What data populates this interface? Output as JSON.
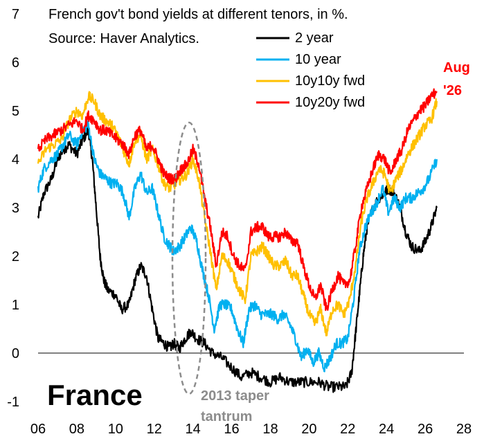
{
  "chart_data": {
    "type": "line",
    "title": "French gov't bond yields at different tenors, in %.",
    "subtitle": "Source: Haver Analytics.",
    "country_label": "France",
    "xlabel": "",
    "ylabel": "",
    "xlim": [
      2006,
      2028
    ],
    "ylim": [
      -1,
      7
    ],
    "x_ticks": [
      2006,
      2008,
      2010,
      2012,
      2014,
      2016,
      2018,
      2020,
      2022,
      2024,
      2026,
      2028
    ],
    "x_tick_labels": [
      "06",
      "08",
      "10",
      "12",
      "14",
      "16",
      "18",
      "20",
      "22",
      "24",
      "26",
      "28"
    ],
    "y_ticks": [
      -1,
      0,
      1,
      2,
      3,
      4,
      5,
      6,
      7
    ],
    "y_tick_labels": [
      "-1",
      "0",
      "1",
      "2",
      "3",
      "4",
      "5",
      "6",
      "7"
    ],
    "grid": false,
    "legend_position": "top-right",
    "series": [
      {
        "name": "2 year",
        "color": "#000000",
        "x": [
          2006.0,
          2006.3,
          2006.7,
          2007.0,
          2007.3,
          2007.6,
          2008.0,
          2008.3,
          2008.6,
          2008.8,
          2009.0,
          2009.2,
          2009.4,
          2009.6,
          2010.0,
          2010.3,
          2010.7,
          2011.0,
          2011.3,
          2011.6,
          2011.9,
          2012.2,
          2012.5,
          2012.8,
          2013.0,
          2013.3,
          2013.6,
          2013.9,
          2014.2,
          2014.6,
          2015.0,
          2015.5,
          2016.0,
          2016.5,
          2017.0,
          2017.5,
          2018.0,
          2018.5,
          2019.0,
          2019.5,
          2020.0,
          2020.5,
          2021.0,
          2021.5,
          2021.9,
          2022.2,
          2022.4,
          2022.6,
          2022.8,
          2023.0,
          2023.3,
          2023.6,
          2023.9,
          2024.1,
          2024.4,
          2024.7,
          2025.0,
          2025.3,
          2025.7,
          2026.0,
          2026.3,
          2026.6
        ],
        "values": [
          2.8,
          3.3,
          3.6,
          4.0,
          4.2,
          4.3,
          4.1,
          4.4,
          4.6,
          4.0,
          3.0,
          2.0,
          1.5,
          1.3,
          1.2,
          0.9,
          1.0,
          1.5,
          1.8,
          1.6,
          0.9,
          0.3,
          0.2,
          0.1,
          0.2,
          0.1,
          0.3,
          0.45,
          0.3,
          0.2,
          0.0,
          -0.1,
          -0.3,
          -0.5,
          -0.4,
          -0.5,
          -0.6,
          -0.5,
          -0.6,
          -0.6,
          -0.6,
          -0.6,
          -0.7,
          -0.7,
          -0.7,
          -0.4,
          0.4,
          1.2,
          2.0,
          2.6,
          3.0,
          3.2,
          3.3,
          3.4,
          3.3,
          3.0,
          2.5,
          2.2,
          2.1,
          2.3,
          2.6,
          3.0
        ]
      },
      {
        "name": "10 year",
        "color": "#00b0f0",
        "x": [
          2006.0,
          2006.3,
          2006.7,
          2007.0,
          2007.3,
          2007.6,
          2008.0,
          2008.3,
          2008.6,
          2008.9,
          2009.2,
          2009.5,
          2009.8,
          2010.1,
          2010.4,
          2010.7,
          2011.0,
          2011.3,
          2011.6,
          2011.9,
          2012.2,
          2012.5,
          2012.8,
          2013.0,
          2013.3,
          2013.6,
          2013.9,
          2014.2,
          2014.5,
          2014.8,
          2015.1,
          2015.4,
          2015.7,
          2016.0,
          2016.3,
          2016.6,
          2016.9,
          2017.2,
          2017.5,
          2017.8,
          2018.1,
          2018.4,
          2018.7,
          2019.0,
          2019.3,
          2019.6,
          2019.9,
          2020.2,
          2020.5,
          2020.8,
          2021.1,
          2021.4,
          2021.7,
          2022.0,
          2022.3,
          2022.6,
          2022.9,
          2023.2,
          2023.5,
          2023.8,
          2024.1,
          2024.4,
          2024.7,
          2025.0,
          2025.3,
          2025.6,
          2025.9,
          2026.2,
          2026.6
        ],
        "values": [
          3.4,
          3.8,
          4.0,
          4.1,
          4.3,
          4.5,
          4.3,
          4.6,
          4.7,
          4.0,
          3.7,
          3.6,
          3.5,
          3.5,
          3.3,
          2.8,
          3.4,
          3.7,
          3.3,
          3.4,
          2.9,
          2.4,
          2.2,
          2.1,
          2.2,
          2.4,
          2.6,
          2.3,
          1.7,
          1.2,
          0.5,
          1.0,
          1.0,
          0.9,
          0.5,
          0.2,
          0.9,
          1.0,
          0.8,
          0.8,
          0.8,
          0.7,
          0.8,
          0.6,
          0.3,
          -0.1,
          0.1,
          -0.2,
          0.0,
          -0.3,
          -0.1,
          0.2,
          0.2,
          0.3,
          1.1,
          2.1,
          2.6,
          2.9,
          3.1,
          3.4,
          2.9,
          3.2,
          3.0,
          3.2,
          3.2,
          3.3,
          3.4,
          3.6,
          4.0
        ]
      },
      {
        "name": "10y10y fwd",
        "color": "#ffc000",
        "x": [
          2006.0,
          2006.4,
          2006.8,
          2007.2,
          2007.6,
          2008.0,
          2008.3,
          2008.6,
          2008.9,
          2009.2,
          2009.5,
          2009.8,
          2010.1,
          2010.4,
          2010.7,
          2011.0,
          2011.3,
          2011.6,
          2011.9,
          2012.2,
          2012.5,
          2012.8,
          2013.1,
          2013.4,
          2013.7,
          2014.0,
          2014.3,
          2014.6,
          2014.9,
          2015.2,
          2015.5,
          2015.8,
          2016.1,
          2016.4,
          2016.7,
          2017.0,
          2017.3,
          2017.6,
          2017.9,
          2018.2,
          2018.5,
          2018.8,
          2019.1,
          2019.4,
          2019.7,
          2020.0,
          2020.3,
          2020.6,
          2020.9,
          2021.2,
          2021.5,
          2021.8,
          2022.1,
          2022.4,
          2022.7,
          2023.0,
          2023.3,
          2023.6,
          2023.9,
          2024.2,
          2024.5,
          2024.8,
          2025.1,
          2025.4,
          2025.7,
          2026.0,
          2026.3,
          2026.6
        ],
        "values": [
          3.9,
          4.2,
          4.3,
          4.4,
          4.8,
          5.0,
          4.9,
          5.3,
          5.2,
          4.9,
          4.8,
          4.7,
          4.5,
          4.2,
          3.9,
          4.4,
          4.5,
          4.0,
          4.2,
          3.9,
          3.5,
          3.4,
          3.5,
          3.6,
          3.7,
          4.0,
          3.6,
          2.8,
          2.1,
          1.3,
          2.0,
          1.9,
          1.6,
          1.3,
          1.1,
          2.0,
          2.1,
          2.2,
          2.0,
          1.8,
          1.8,
          1.9,
          1.6,
          1.6,
          1.2,
          0.8,
          0.6,
          0.9,
          0.4,
          0.9,
          1.0,
          0.8,
          1.1,
          1.8,
          2.7,
          3.2,
          3.5,
          3.8,
          3.7,
          3.3,
          3.6,
          3.8,
          4.1,
          4.3,
          4.5,
          4.7,
          4.8,
          5.2
        ]
      },
      {
        "name": "10y20y fwd",
        "color": "#ff0000",
        "x": [
          2006.0,
          2006.4,
          2006.8,
          2007.2,
          2007.6,
          2008.0,
          2008.3,
          2008.6,
          2008.9,
          2009.2,
          2009.5,
          2009.8,
          2010.1,
          2010.4,
          2010.7,
          2011.0,
          2011.3,
          2011.6,
          2011.9,
          2012.2,
          2012.5,
          2012.8,
          2013.1,
          2013.4,
          2013.7,
          2014.0,
          2014.3,
          2014.6,
          2014.9,
          2015.2,
          2015.5,
          2015.8,
          2016.1,
          2016.4,
          2016.7,
          2017.0,
          2017.3,
          2017.6,
          2017.9,
          2018.2,
          2018.5,
          2018.8,
          2019.1,
          2019.4,
          2019.7,
          2020.0,
          2020.3,
          2020.6,
          2020.9,
          2021.2,
          2021.5,
          2021.8,
          2022.1,
          2022.4,
          2022.7,
          2023.0,
          2023.3,
          2023.6,
          2023.9,
          2024.2,
          2024.5,
          2024.8,
          2025.1,
          2025.4,
          2025.7,
          2026.0,
          2026.3,
          2026.6
        ],
        "values": [
          4.2,
          4.4,
          4.5,
          4.6,
          4.7,
          4.8,
          4.6,
          4.9,
          4.8,
          4.6,
          4.6,
          4.5,
          4.4,
          4.3,
          4.1,
          4.5,
          4.6,
          4.2,
          4.3,
          4.0,
          3.7,
          3.6,
          3.6,
          3.8,
          3.9,
          4.2,
          3.9,
          3.2,
          2.6,
          1.8,
          2.5,
          2.4,
          2.0,
          1.8,
          1.7,
          2.5,
          2.6,
          2.6,
          2.4,
          2.4,
          2.4,
          2.5,
          2.3,
          2.3,
          1.8,
          1.4,
          1.1,
          1.4,
          0.9,
          1.3,
          1.6,
          1.4,
          1.5,
          2.2,
          3.0,
          3.4,
          3.8,
          4.1,
          4.0,
          3.7,
          4.0,
          4.2,
          4.6,
          4.8,
          5.0,
          5.1,
          5.3,
          5.4
        ]
      }
    ],
    "annotations": [
      {
        "label": "Aug '26",
        "color": "#ff0000"
      },
      {
        "label": "2013 taper tantrum",
        "color": "#7f7f7f",
        "shape": "dashed-ellipse"
      }
    ]
  }
}
